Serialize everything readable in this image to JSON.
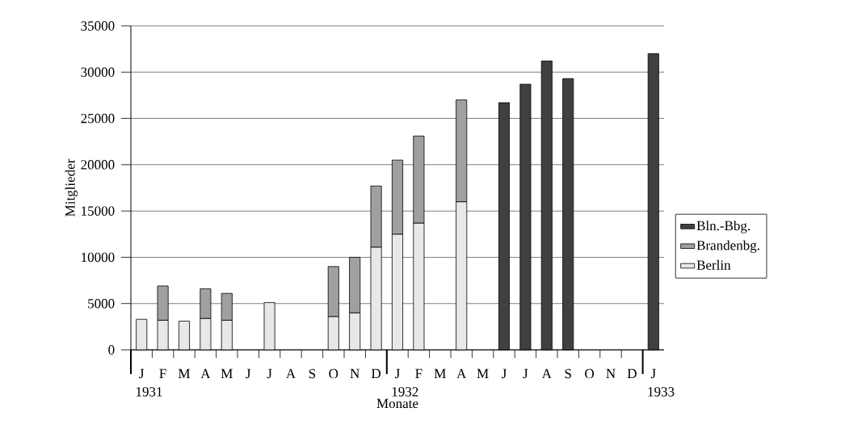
{
  "chart_data": {
    "type": "bar",
    "stacked": true,
    "xlabel": "Monate",
    "ylabel": "Mitglieder",
    "categories": [
      "J",
      "F",
      "M",
      "A",
      "M",
      "J",
      "J",
      "A",
      "S",
      "O",
      "N",
      "D",
      "J",
      "F",
      "M",
      "A",
      "M",
      "J",
      "J",
      "A",
      "S",
      "O",
      "N",
      "D",
      "J"
    ],
    "series": [
      {
        "name": "Berlin",
        "color": "#e8e8e8",
        "values": [
          3300,
          3200,
          3100,
          3400,
          3200,
          null,
          5100,
          null,
          null,
          3600,
          4000,
          11100,
          12500,
          13700,
          null,
          16000,
          null,
          null,
          null,
          null,
          null,
          null,
          null,
          null,
          null
        ]
      },
      {
        "name": "Brandenbg.",
        "color": "#a0a0a0",
        "values": [
          null,
          3700,
          null,
          3200,
          2900,
          null,
          null,
          null,
          null,
          5400,
          6000,
          6600,
          8000,
          9400,
          null,
          11000,
          null,
          null,
          null,
          null,
          null,
          null,
          null,
          null,
          null
        ]
      },
      {
        "name": "Bln.-Bbg.",
        "color": "#404040",
        "values": [
          null,
          null,
          null,
          null,
          null,
          null,
          null,
          null,
          null,
          null,
          null,
          null,
          null,
          null,
          null,
          null,
          null,
          26700,
          28700,
          31200,
          29300,
          null,
          null,
          null,
          32000
        ]
      }
    ],
    "ylim": [
      0,
      35000
    ],
    "yticks": [
      0,
      5000,
      10000,
      15000,
      20000,
      25000,
      30000,
      35000
    ],
    "grid": "y",
    "legend": "right",
    "annotations": [
      "1931",
      "1932",
      "1933"
    ]
  }
}
